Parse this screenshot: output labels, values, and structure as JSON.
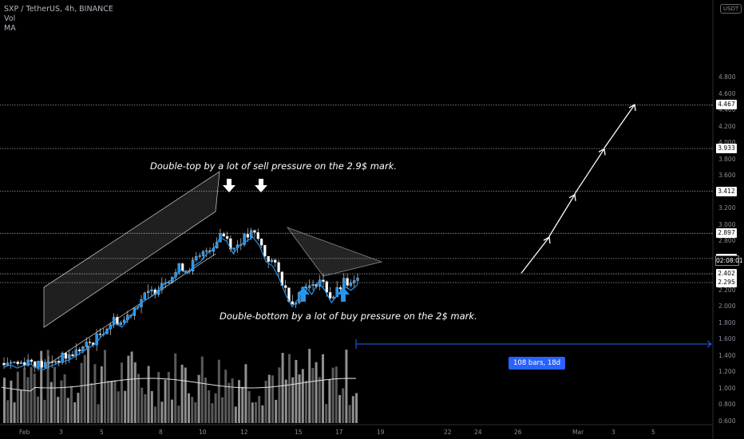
{
  "legend": {
    "symbol": "SXP / TetherUS, 4h, BINANCE",
    "vol": "Vol",
    "ma": "MA"
  },
  "currency_badge": "USDT",
  "annotations": {
    "double_top": "Double-top by a lot of sell pressure on the 2.9$ mark.",
    "double_bottom": "Double-bottom by a lot of buy pressure on the 2$ mark."
  },
  "range_label": "108 bars, 18d",
  "countdown": "02:08:01",
  "price_tags": [
    "4.467",
    "3.933",
    "3.412",
    "2.897",
    "2.589",
    "2.402",
    "2.295"
  ],
  "price_axis": [
    "4.800",
    "4.600",
    "4.400",
    "4.200",
    "4.000",
    "3.800",
    "3.600",
    "3.400",
    "3.200",
    "3.000",
    "2.800",
    "2.600",
    "2.400",
    "2.200",
    "2.000",
    "1.800",
    "1.600",
    "1.400",
    "1.200",
    "1.000",
    "0.800",
    "0.600"
  ],
  "time_axis": [
    "Feb",
    "3",
    "5",
    "8",
    "10",
    "12",
    "15",
    "17",
    "19",
    "22",
    "24",
    "26",
    "Mar",
    "3",
    "5"
  ],
  "colors": {
    "up": "#26a69a",
    "down": "#ef5350",
    "candle_up": "#2196f3",
    "ma": "#2196f3",
    "volume": "#9e9e9e",
    "arrow_blue": "#2196f3",
    "range": "#2962ff"
  },
  "chart_data": {
    "type": "candlestick",
    "symbol": "SXP/USDT",
    "interval": "4h",
    "ylim": [
      0.5,
      4.9
    ],
    "horizontal_levels": [
      4.467,
      3.933,
      3.412,
      2.897,
      2.589,
      2.402,
      2.295
    ],
    "close_path": [
      1.31,
      1.34,
      1.3,
      1.33,
      1.35,
      1.3,
      1.28,
      1.32,
      1.35,
      1.38,
      1.4,
      1.45,
      1.5,
      1.55,
      1.6,
      1.7,
      1.78,
      1.85,
      1.8,
      1.9,
      2.0,
      2.1,
      2.15,
      2.2,
      2.3,
      2.35,
      2.4,
      2.5,
      2.45,
      2.55,
      2.6,
      2.7,
      2.75,
      2.9,
      2.85,
      2.7,
      2.8,
      2.85,
      2.9,
      2.8,
      2.6,
      2.55,
      2.4,
      2.2,
      2.05,
      2.15,
      2.3,
      2.2,
      2.35,
      2.25,
      2.1,
      2.2,
      2.3,
      2.25,
      2.32
    ],
    "projection_path": [
      2.41,
      2.85,
      2.86,
      3.37,
      3.38,
      3.93,
      3.94,
      4.47
    ],
    "volume_ma_level": "mid"
  }
}
